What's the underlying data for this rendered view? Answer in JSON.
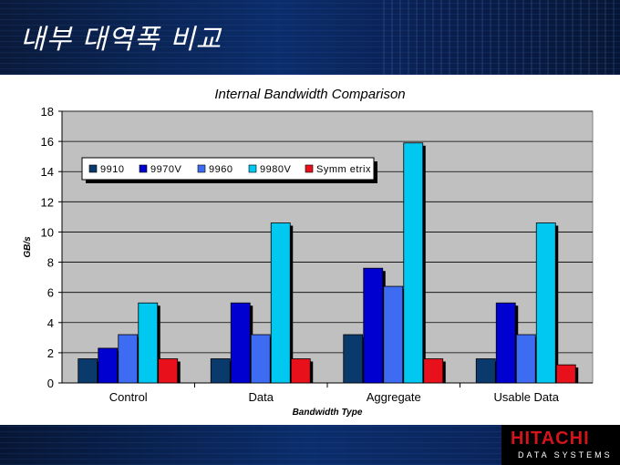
{
  "slide": {
    "title": "내부 대역폭 비교"
  },
  "logo": {
    "main": "HITACHI",
    "sub": "DATA SYSTEMS"
  },
  "colors": {
    "9910": "#0a3a6b",
    "9970V": "#0000d0",
    "9960": "#3d6cf2",
    "9980V": "#00c8f0",
    "Symmetrix": "#e8101a",
    "plot_background": "#c0c0c0"
  },
  "chart_data": {
    "type": "bar",
    "title": "Internal Bandwidth Comparison",
    "xlabel": "Bandwidth Type",
    "ylabel": "GB/s",
    "ylim": [
      0,
      18
    ],
    "yticks": [
      0,
      2,
      4,
      6,
      8,
      10,
      12,
      14,
      16,
      18
    ],
    "categories": [
      "Control",
      "Data",
      "Aggregate",
      "Usable Data"
    ],
    "series": [
      {
        "name": "9910",
        "values": [
          1.6,
          1.6,
          3.2,
          1.6
        ]
      },
      {
        "name": "9970V",
        "values": [
          2.3,
          5.3,
          7.6,
          5.3
        ]
      },
      {
        "name": "9960",
        "values": [
          3.2,
          3.2,
          6.4,
          3.2
        ]
      },
      {
        "name": "9980V",
        "values": [
          5.3,
          10.6,
          15.9,
          10.6
        ]
      },
      {
        "name": "Symmetrix",
        "values": [
          1.6,
          1.6,
          1.6,
          1.2
        ]
      }
    ],
    "legend_text": [
      "9910",
      "9970V",
      "9960",
      "9980V",
      "Symm etrix"
    ],
    "legend_position": "top-left",
    "grid": true
  }
}
